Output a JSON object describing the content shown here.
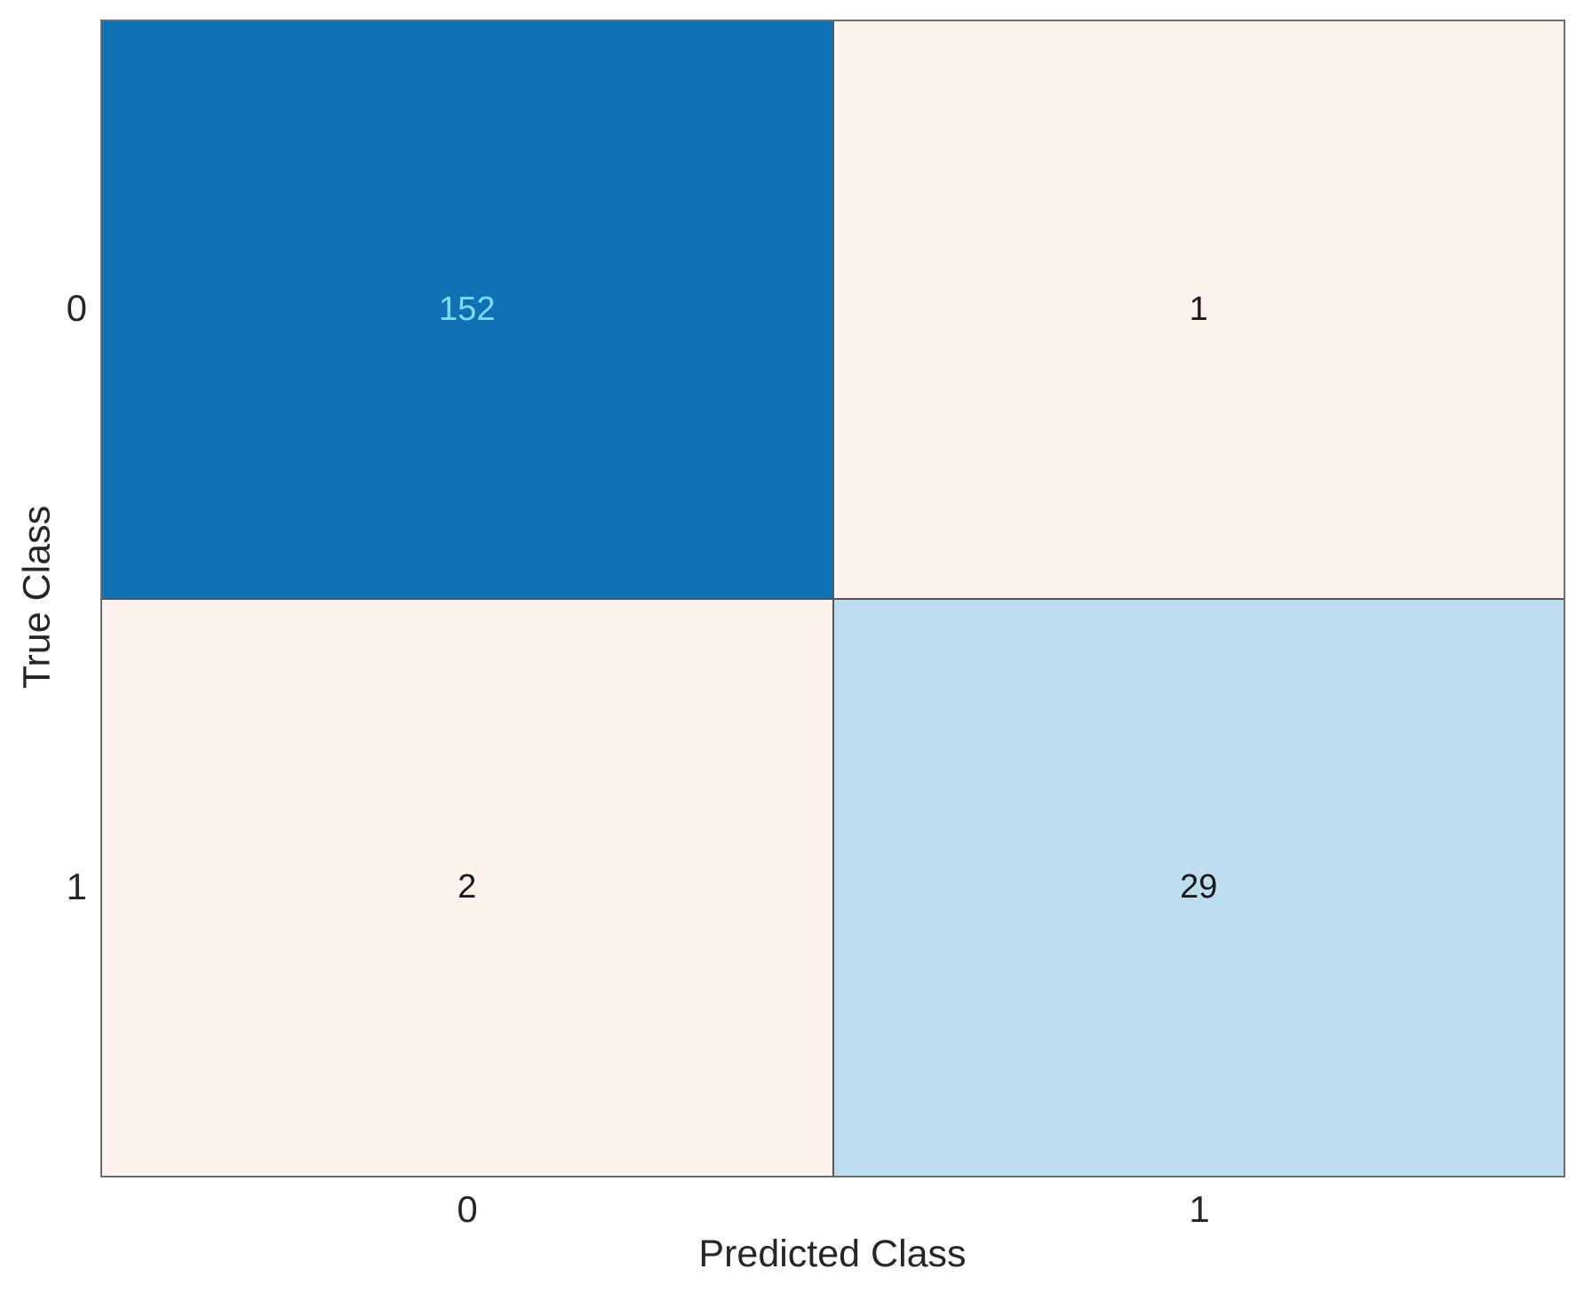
{
  "chart_data": {
    "type": "heatmap",
    "subtype": "confusion_matrix",
    "title": "",
    "xlabel": "Predicted Class",
    "ylabel": "True Class",
    "x_categories": [
      "0",
      "1"
    ],
    "y_categories": [
      "0",
      "1"
    ],
    "values": [
      [
        152,
        1
      ],
      [
        2,
        29
      ]
    ],
    "cell_colors": [
      [
        "#0f72b5",
        "#fdf2ed"
      ],
      [
        "#fdf2ed",
        "#bddeee"
      ]
    ],
    "cell_text_colors": [
      [
        "#7fdbf2",
        "#1a1a1a"
      ],
      [
        "#1a1a1a",
        "#1a1a1a"
      ]
    ],
    "colors": {
      "background": "#ffffff",
      "grid_line": "#54565a",
      "axis_border": "#6a6a6a",
      "axis_text": "#262626"
    },
    "layout": {
      "grid_on": true,
      "legend": "none",
      "rows": 2,
      "cols": 2
    }
  }
}
